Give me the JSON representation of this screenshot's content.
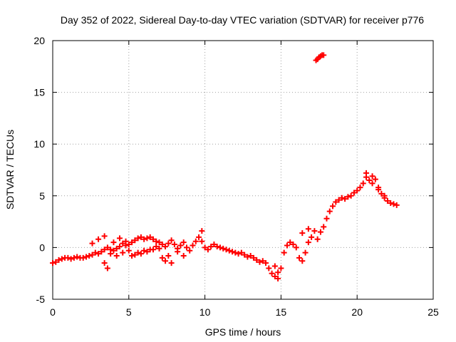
{
  "chart_data": {
    "type": "scatter",
    "title": "Day 352 of 2022, Sidereal Day-to-day VTEC variation (SDTVAR) for receiver p776",
    "xlabel": "GPS time / hours",
    "ylabel": "SDTVAR / TECUs",
    "xlim": [
      0,
      25
    ],
    "ylim": [
      -5,
      20
    ],
    "xticks": [
      0,
      5,
      10,
      15,
      20,
      25
    ],
    "xtick_labels": [
      "0",
      "5",
      "10",
      "15",
      "20",
      "25"
    ],
    "yticks": [
      -5,
      0,
      5,
      10,
      15,
      20
    ],
    "ytick_labels": [
      "-5",
      "0",
      "5",
      "10",
      "15",
      "20"
    ],
    "grid": true,
    "marker": "+",
    "series": [
      {
        "name": "SDTVAR",
        "color": "#ff0000",
        "x": [
          0.0,
          0.2,
          0.4,
          0.6,
          0.8,
          1.0,
          1.2,
          1.4,
          1.6,
          1.8,
          2.0,
          2.2,
          2.4,
          2.6,
          2.8,
          3.0,
          3.2,
          3.4,
          3.6,
          3.8,
          4.0,
          4.2,
          4.4,
          4.6,
          4.8,
          5.0,
          5.2,
          5.4,
          5.6,
          5.8,
          6.0,
          6.2,
          6.4,
          6.6,
          6.8,
          7.0,
          7.2,
          7.4,
          7.6,
          7.8,
          8.0,
          8.2,
          8.4,
          8.6,
          8.8,
          9.0,
          9.2,
          9.4,
          9.6,
          9.8,
          10.0,
          10.2,
          10.4,
          10.6,
          10.8,
          11.0,
          11.2,
          11.4,
          11.6,
          11.8,
          12.0,
          12.2,
          12.4,
          12.6,
          12.8,
          13.0,
          13.2,
          13.4,
          13.6,
          13.8,
          14.0,
          14.2,
          14.4,
          14.6,
          14.8,
          15.0,
          15.2,
          15.4,
          15.6,
          15.8,
          16.0,
          16.2,
          16.4,
          16.6,
          16.8,
          17.0,
          17.2,
          17.4,
          17.6,
          17.8,
          18.0,
          18.2,
          18.4,
          18.6,
          18.8,
          19.0,
          19.2,
          19.4,
          19.6,
          19.8,
          20.0,
          20.2,
          20.4,
          20.6,
          20.8,
          21.0,
          21.2,
          21.4,
          21.6,
          21.8,
          22.0,
          22.2,
          22.4,
          22.6,
          2.6,
          3.0,
          3.4,
          3.8,
          4.2,
          4.6,
          5.0,
          5.4,
          5.8,
          6.2,
          6.6,
          7.0,
          7.4,
          7.8,
          8.2,
          8.6,
          4.0,
          4.4,
          4.8,
          5.2,
          5.6,
          6.0,
          6.4,
          6.8,
          3.4,
          3.6,
          7.2,
          7.6,
          9.8,
          14.6,
          14.8,
          16.4,
          16.8,
          20.6,
          21.0,
          21.4,
          21.8,
          17.3,
          17.4,
          17.5,
          17.6,
          17.7,
          17.8
        ],
        "y": [
          -1.5,
          -1.4,
          -1.2,
          -1.1,
          -1.0,
          -1.0,
          -1.1,
          -1.0,
          -0.9,
          -1.0,
          -1.0,
          -0.9,
          -0.8,
          -0.7,
          -0.5,
          -0.6,
          -0.4,
          -0.2,
          0.0,
          -0.2,
          -0.3,
          -0.1,
          0.1,
          0.4,
          0.6,
          0.3,
          0.5,
          0.7,
          0.9,
          1.0,
          0.8,
          0.9,
          1.0,
          0.8,
          0.6,
          0.5,
          0.3,
          0.1,
          0.4,
          0.7,
          0.3,
          -0.1,
          0.2,
          0.5,
          0.0,
          -0.3,
          0.2,
          0.6,
          1.0,
          0.6,
          0.0,
          -0.2,
          0.1,
          0.3,
          0.1,
          0.0,
          -0.1,
          -0.2,
          -0.3,
          -0.4,
          -0.5,
          -0.6,
          -0.5,
          -0.7,
          -0.9,
          -0.8,
          -1.0,
          -1.2,
          -1.4,
          -1.3,
          -1.5,
          -2.0,
          -2.5,
          -2.8,
          -3.0,
          -2.0,
          -0.5,
          0.2,
          0.5,
          0.3,
          0.0,
          -1.0,
          -1.3,
          -0.5,
          0.5,
          1.0,
          1.6,
          0.8,
          1.5,
          2.0,
          2.8,
          3.5,
          4.0,
          4.4,
          4.6,
          4.8,
          4.7,
          4.9,
          5.0,
          5.3,
          5.5,
          5.8,
          6.2,
          6.8,
          6.5,
          6.2,
          6.6,
          5.8,
          5.2,
          4.8,
          4.5,
          4.3,
          4.2,
          4.1,
          0.4,
          0.8,
          1.1,
          -0.6,
          -0.8,
          -0.5,
          -0.3,
          -0.7,
          -0.6,
          -0.4,
          -0.2,
          -0.1,
          -1.3,
          -1.5,
          -0.4,
          -0.8,
          0.5,
          0.9,
          0.2,
          -0.8,
          -0.5,
          -0.3,
          -0.2,
          0.1,
          -1.5,
          -2.0,
          -1.0,
          -0.8,
          1.6,
          -1.8,
          -2.4,
          1.4,
          1.8,
          7.2,
          6.9,
          5.6,
          5.0,
          18.1,
          18.2,
          18.4,
          18.5,
          18.6,
          18.6
        ]
      }
    ]
  }
}
